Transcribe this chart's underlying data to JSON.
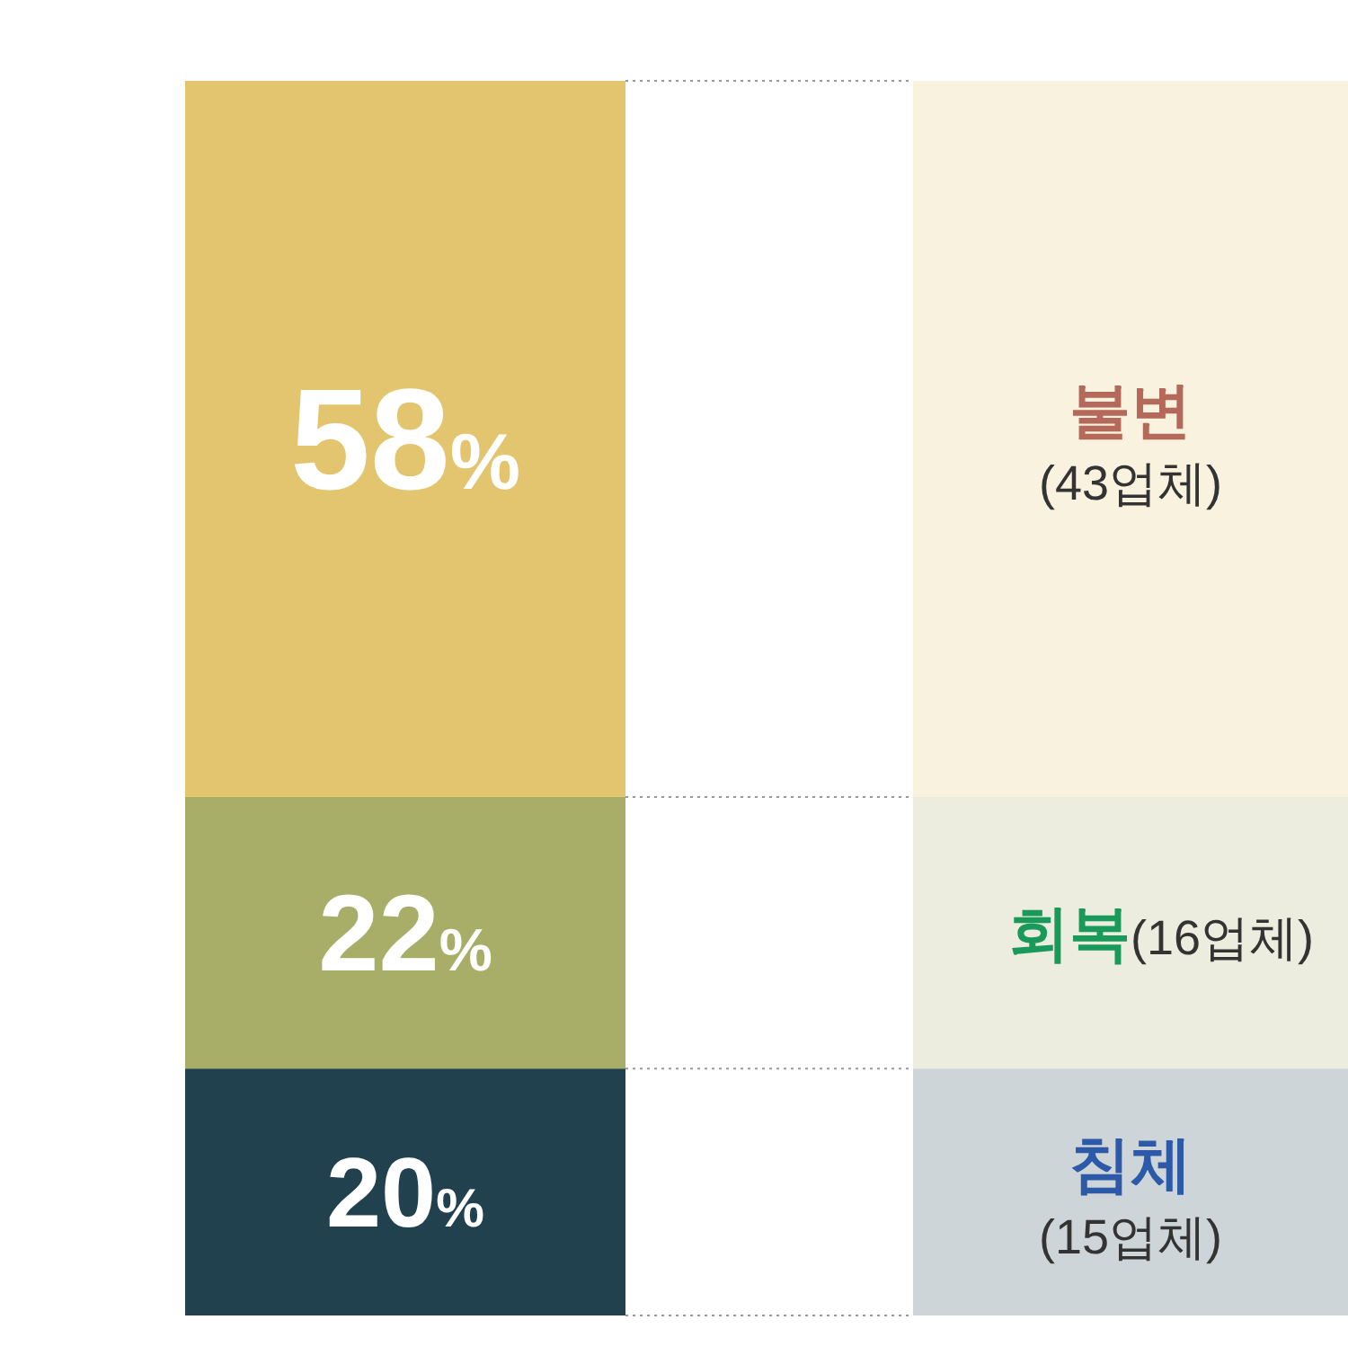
{
  "chart_data": {
    "type": "bar",
    "stacked": true,
    "categories": [
      null
    ],
    "legend": "right",
    "series": [
      {
        "name": "침체",
        "color": "#22414f",
        "values": [
          20
        ],
        "value_labels": [
          "20%"
        ]
      },
      {
        "name": "회복",
        "color": "#a8ad68",
        "values": [
          22
        ],
        "value_labels": [
          "22%"
        ]
      },
      {
        "name": "불변",
        "color": "#e2c56e",
        "values": [
          58
        ],
        "value_labels": [
          "58%"
        ]
      }
    ],
    "annotations": [
      "(15업체)",
      "(16업체)",
      "(43업체)"
    ]
  }
}
